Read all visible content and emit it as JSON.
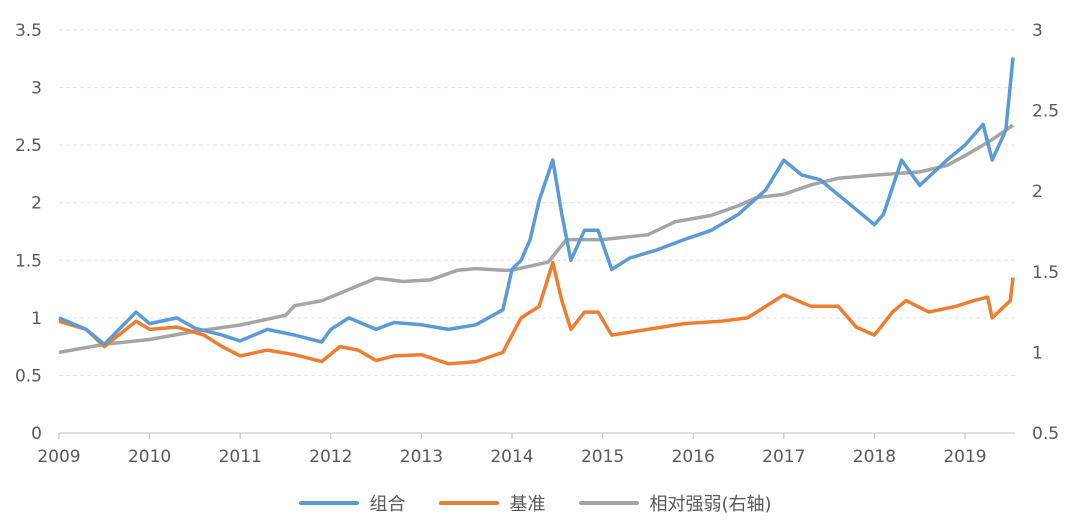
{
  "chart_data": {
    "type": "line",
    "title": "",
    "x_ticks": [
      "2009",
      "2010",
      "2011",
      "2012",
      "2013",
      "2014",
      "2015",
      "2016",
      "2017",
      "2018",
      "2019"
    ],
    "xlim": [
      2009,
      2019.6
    ],
    "y_left": {
      "ticks": [
        "0",
        "0.5",
        "1",
        "1.5",
        "2",
        "2.5",
        "3",
        "3.5"
      ],
      "ylim": [
        0,
        3.5
      ]
    },
    "y_right": {
      "ticks": [
        "0.5",
        "1",
        "1.5",
        "2",
        "2.5",
        "3"
      ],
      "ylim": [
        0.5,
        3
      ]
    },
    "grid": "horizontal dashed",
    "legend_placement": "bottom",
    "series": [
      {
        "name": "组合",
        "axis": "left",
        "color": "#5B9BD5",
        "x": [
          2009.0,
          2009.3,
          2009.5,
          2009.85,
          2010.0,
          2010.3,
          2010.5,
          2010.8,
          2011.0,
          2011.3,
          2011.6,
          2011.9,
          2012.0,
          2012.2,
          2012.5,
          2012.7,
          2013.0,
          2013.3,
          2013.6,
          2013.9,
          2014.0,
          2014.1,
          2014.2,
          2014.3,
          2014.45,
          2014.55,
          2014.65,
          2014.8,
          2014.95,
          2015.1,
          2015.3,
          2015.6,
          2015.9,
          2016.2,
          2016.5,
          2016.8,
          2017.0,
          2017.2,
          2017.4,
          2017.6,
          2017.8,
          2018.0,
          2018.1,
          2018.3,
          2018.5,
          2018.8,
          2019.0,
          2019.2,
          2019.3,
          2019.45,
          2019.53
        ],
        "y": [
          1.0,
          0.9,
          0.77,
          1.05,
          0.95,
          1.0,
          0.91,
          0.85,
          0.8,
          0.9,
          0.85,
          0.79,
          0.9,
          1.0,
          0.9,
          0.96,
          0.94,
          0.9,
          0.94,
          1.07,
          1.42,
          1.5,
          1.68,
          2.02,
          2.37,
          1.9,
          1.5,
          1.76,
          1.76,
          1.42,
          1.52,
          1.59,
          1.68,
          1.76,
          1.9,
          2.11,
          2.37,
          2.24,
          2.2,
          2.07,
          1.94,
          1.81,
          1.9,
          2.37,
          2.15,
          2.37,
          2.5,
          2.68,
          2.37,
          2.63,
          3.26
        ]
      },
      {
        "name": "基准",
        "axis": "left",
        "color": "#ED7D31",
        "x": [
          2009.0,
          2009.3,
          2009.5,
          2009.85,
          2010.0,
          2010.3,
          2010.6,
          2010.8,
          2011.0,
          2011.3,
          2011.6,
          2011.9,
          2012.1,
          2012.3,
          2012.5,
          2012.7,
          2013.0,
          2013.3,
          2013.6,
          2013.9,
          2014.0,
          2014.1,
          2014.3,
          2014.45,
          2014.55,
          2014.65,
          2014.8,
          2014.95,
          2015.1,
          2015.5,
          2015.9,
          2016.3,
          2016.6,
          2016.9,
          2017.0,
          2017.3,
          2017.6,
          2017.8,
          2018.0,
          2018.2,
          2018.35,
          2018.6,
          2018.9,
          2019.1,
          2019.25,
          2019.3,
          2019.5,
          2019.53
        ],
        "y": [
          0.97,
          0.9,
          0.75,
          0.97,
          0.9,
          0.92,
          0.85,
          0.75,
          0.67,
          0.72,
          0.68,
          0.62,
          0.75,
          0.72,
          0.63,
          0.67,
          0.68,
          0.6,
          0.62,
          0.7,
          0.85,
          1.0,
          1.1,
          1.48,
          1.15,
          0.9,
          1.05,
          1.05,
          0.85,
          0.9,
          0.95,
          0.97,
          1.0,
          1.15,
          1.2,
          1.1,
          1.1,
          0.92,
          0.85,
          1.05,
          1.15,
          1.05,
          1.1,
          1.15,
          1.18,
          1.0,
          1.15,
          1.35
        ]
      },
      {
        "name": "相对强弱(右轴)",
        "axis": "right",
        "color": "#A5A5A5",
        "x": [
          2009.0,
          2009.5,
          2010.0,
          2010.5,
          2011.0,
          2011.5,
          2011.6,
          2011.9,
          2012.2,
          2012.5,
          2012.8,
          2013.1,
          2013.4,
          2013.6,
          2013.9,
          2014.0,
          2014.4,
          2014.6,
          2015.0,
          2015.5,
          2015.8,
          2016.2,
          2016.5,
          2016.7,
          2017.0,
          2017.3,
          2017.6,
          2018.0,
          2018.5,
          2018.8,
          2019.0,
          2019.3,
          2019.53
        ],
        "y": [
          1.0,
          1.05,
          1.08,
          1.13,
          1.17,
          1.23,
          1.29,
          1.32,
          1.39,
          1.46,
          1.44,
          1.45,
          1.51,
          1.52,
          1.51,
          1.51,
          1.56,
          1.7,
          1.7,
          1.73,
          1.81,
          1.85,
          1.91,
          1.96,
          1.98,
          2.04,
          2.08,
          2.1,
          2.12,
          2.16,
          2.22,
          2.32,
          2.41
        ]
      }
    ]
  }
}
